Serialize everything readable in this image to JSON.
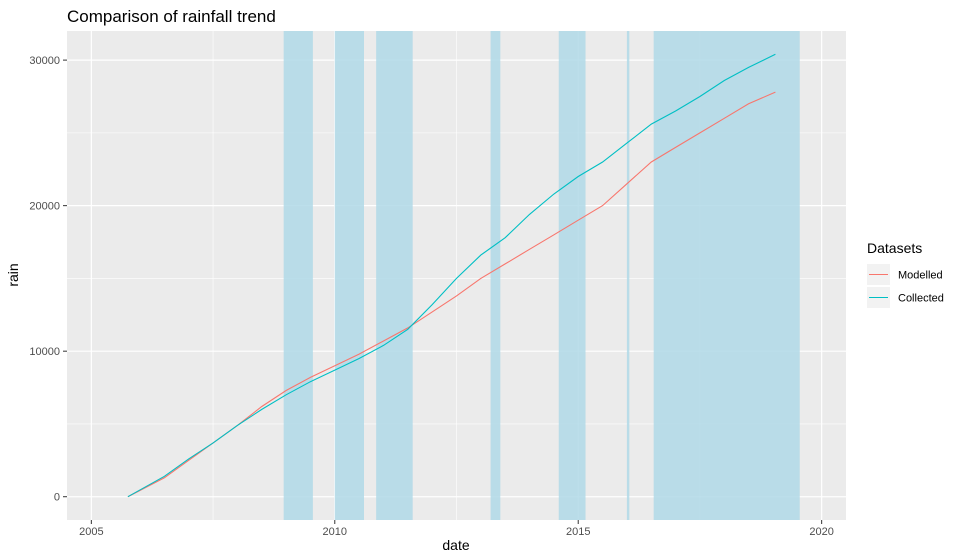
{
  "chart_data": {
    "type": "line",
    "title": "Comparison of rainfall trend",
    "xlabel": "date",
    "ylabel": "rain",
    "xlim": [
      2004.5,
      2020.5
    ],
    "ylim": [
      -1600,
      32000
    ],
    "x_ticks": [
      2005,
      2010,
      2015,
      2020
    ],
    "x_tick_labels": [
      "2005",
      "2010",
      "2015",
      "2020"
    ],
    "y_ticks": [
      0,
      10000,
      20000,
      30000
    ],
    "y_tick_labels": [
      "0",
      "10000",
      "20000",
      "30000"
    ],
    "grid": true,
    "legend": {
      "title": "Datasets",
      "position": "right"
    },
    "shaded_periods": [
      [
        2008.95,
        2009.55
      ],
      [
        2010.0,
        2010.6
      ],
      [
        2010.85,
        2011.6
      ],
      [
        2013.2,
        2013.4
      ],
      [
        2014.6,
        2015.15
      ],
      [
        2016.0,
        2016.05
      ],
      [
        2016.55,
        2019.55
      ]
    ],
    "shade_color": "#add8e6",
    "series": [
      {
        "name": "Modelled",
        "color": "#f8766d",
        "x": [
          2005.75,
          2006.5,
          2007.0,
          2007.5,
          2008.0,
          2008.5,
          2009.0,
          2009.5,
          2010.0,
          2010.5,
          2011.0,
          2011.5,
          2012.0,
          2012.5,
          2013.0,
          2013.5,
          2014.0,
          2014.5,
          2015.0,
          2015.5,
          2016.0,
          2016.5,
          2017.0,
          2017.5,
          2018.0,
          2018.5,
          2019.05
        ],
        "y": [
          0,
          1300,
          2500,
          3700,
          4900,
          6200,
          7300,
          8200,
          9000,
          9800,
          10700,
          11600,
          12700,
          13800,
          15000,
          16000,
          17000,
          18000,
          19000,
          20000,
          21500,
          23000,
          24000,
          25000,
          26000,
          27000,
          27800
        ]
      },
      {
        "name": "Collected",
        "color": "#00bfc4",
        "x": [
          2005.75,
          2006.5,
          2007.0,
          2007.5,
          2008.0,
          2008.5,
          2009.0,
          2009.5,
          2010.0,
          2010.5,
          2011.0,
          2011.5,
          2012.0,
          2012.5,
          2013.0,
          2013.5,
          2014.0,
          2014.5,
          2015.0,
          2015.5,
          2016.0,
          2016.5,
          2017.0,
          2017.5,
          2018.0,
          2018.5,
          2019.05
        ],
        "y": [
          0,
          1400,
          2600,
          3700,
          4900,
          6000,
          7000,
          7900,
          8700,
          9500,
          10400,
          11500,
          13200,
          15000,
          16600,
          17800,
          19400,
          20800,
          22000,
          23000,
          24300,
          25600,
          26500,
          27500,
          28600,
          29500,
          30400
        ]
      }
    ]
  }
}
